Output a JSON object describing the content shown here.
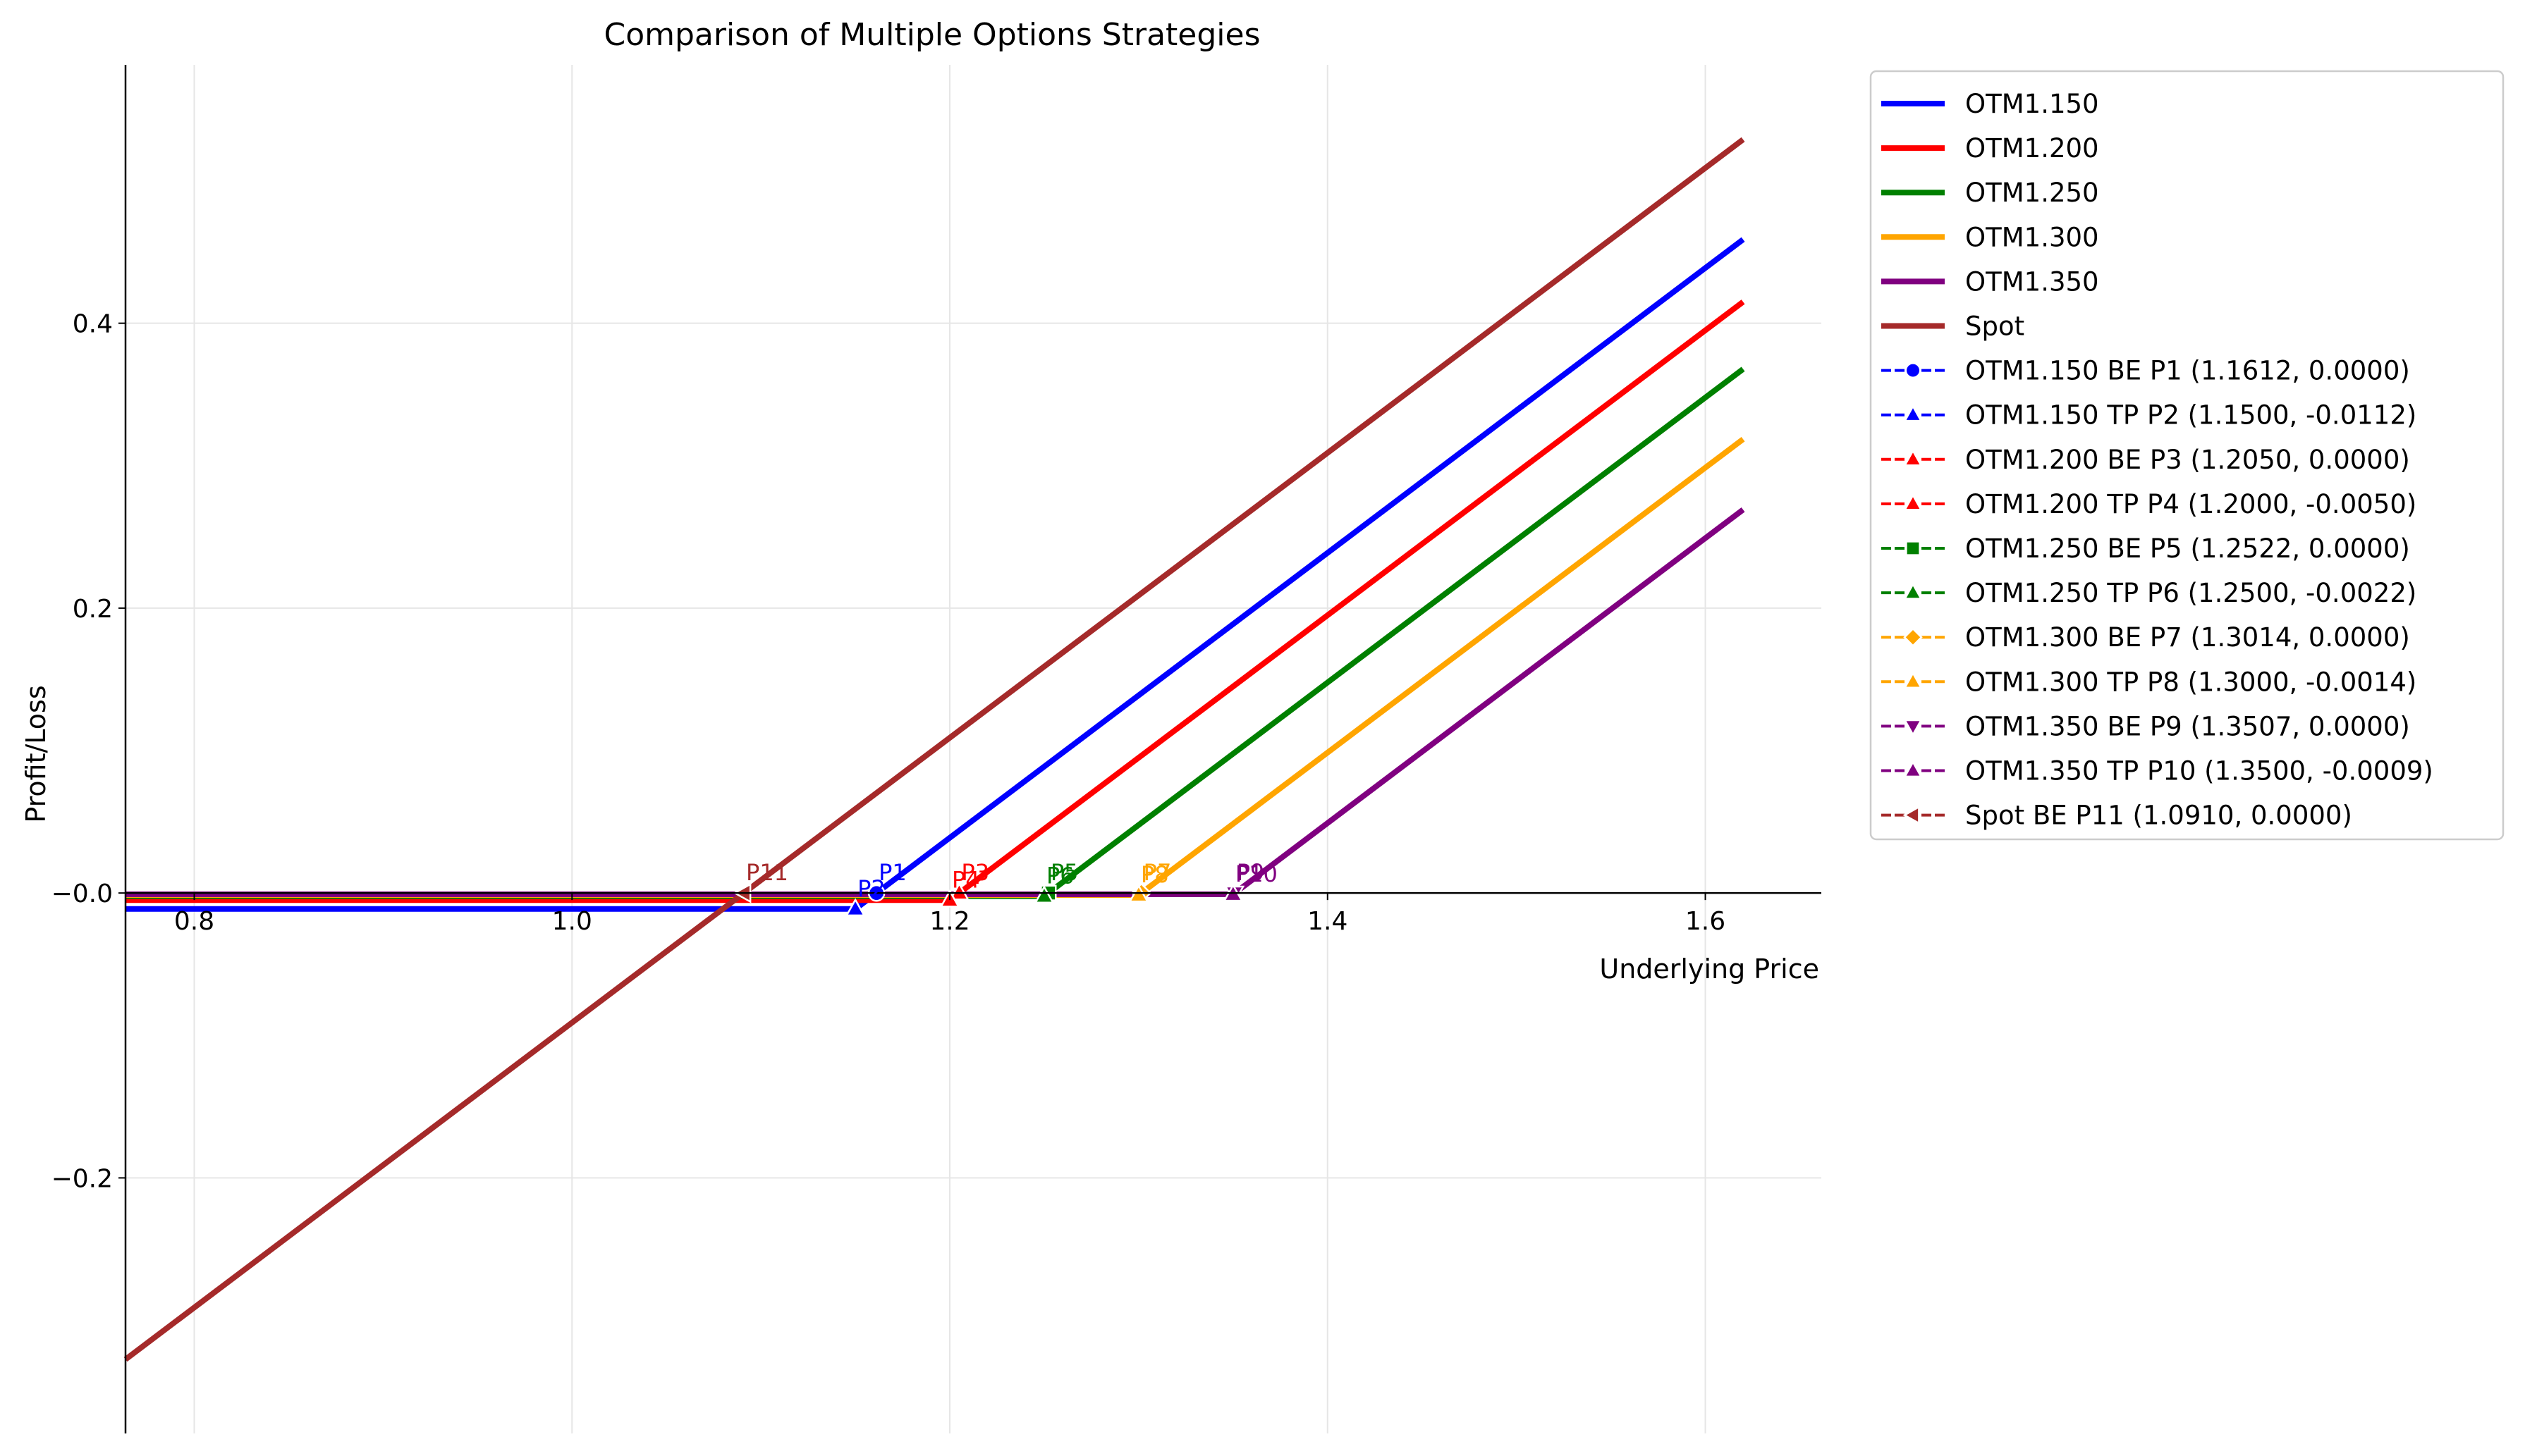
{
  "chart_data": {
    "type": "line",
    "title": "Comparison of Multiple Options Strategies",
    "xlabel": "Underlying Price",
    "ylabel": "Profit/Loss",
    "xlim": [
      0.7636,
      1.6614
    ],
    "ylim": [
      -0.3794,
      0.5814
    ],
    "xticks": [
      0.8,
      1.0,
      1.2,
      1.4,
      1.6
    ],
    "xtick_labels": [
      "0.8",
      "1.0",
      "1.2",
      "1.4",
      "1.6"
    ],
    "yticks": [
      -0.2,
      0.0,
      0.2,
      0.4
    ],
    "ytick_labels": [
      "−0.2",
      "−0.0",
      "0.2",
      "0.4"
    ],
    "grid": true,
    "legend_position": "outside-right",
    "series": [
      {
        "name": "OTM1.150",
        "color": "#0000ff",
        "x": [
          0.7636,
          1.15,
          1.62
        ],
        "y": [
          -0.0112,
          -0.0112,
          0.4588
        ]
      },
      {
        "name": "OTM1.200",
        "color": "#ff0000",
        "x": [
          0.7636,
          1.2,
          1.62
        ],
        "y": [
          -0.005,
          -0.005,
          0.415
        ]
      },
      {
        "name": "OTM1.250",
        "color": "#008000",
        "x": [
          0.7636,
          1.25,
          1.62
        ],
        "y": [
          -0.0022,
          -0.0022,
          0.3678
        ]
      },
      {
        "name": "OTM1.300",
        "color": "#ffa500",
        "x": [
          0.7636,
          1.3,
          1.62
        ],
        "y": [
          -0.0014,
          -0.0014,
          0.3186
        ]
      },
      {
        "name": "OTM1.350",
        "color": "#800080",
        "x": [
          0.7636,
          1.35,
          1.62
        ],
        "y": [
          -0.0009,
          -0.0009,
          0.2691
        ]
      },
      {
        "name": "Spot",
        "color": "#a52a2a",
        "x": [
          0.7636,
          1.62
        ],
        "y": [
          -0.3274,
          0.529
        ]
      }
    ],
    "points": [
      {
        "legend": "OTM1.150 BE P1 (1.1612, 0.0000)",
        "label": "P1",
        "x": 1.1612,
        "y": 0.0,
        "color": "#0000ff",
        "marker": "circle"
      },
      {
        "legend": "OTM1.150 TP P2 (1.1500, -0.0112)",
        "label": "P2",
        "x": 1.15,
        "y": -0.0112,
        "color": "#0000ff",
        "marker": "triangle-up"
      },
      {
        "legend": "OTM1.200 BE P3 (1.2050, 0.0000)",
        "label": "P3",
        "x": 1.205,
        "y": 0.0,
        "color": "#ff0000",
        "marker": "triangle-up"
      },
      {
        "legend": "OTM1.200 TP P4 (1.2000, -0.0050)",
        "label": "P4",
        "x": 1.2,
        "y": -0.005,
        "color": "#ff0000",
        "marker": "triangle-up"
      },
      {
        "legend": "OTM1.250 BE P5 (1.2522, 0.0000)",
        "label": "P5",
        "x": 1.2522,
        "y": 0.0,
        "color": "#008000",
        "marker": "square"
      },
      {
        "legend": "OTM1.250 TP P6 (1.2500, -0.0022)",
        "label": "P6",
        "x": 1.25,
        "y": -0.0022,
        "color": "#008000",
        "marker": "triangle-up"
      },
      {
        "legend": "OTM1.300 BE P7 (1.3014, 0.0000)",
        "label": "P7",
        "x": 1.3014,
        "y": 0.0,
        "color": "#ffa500",
        "marker": "diamond"
      },
      {
        "legend": "OTM1.300 TP P8 (1.3000, -0.0014)",
        "label": "P8",
        "x": 1.3,
        "y": -0.0014,
        "color": "#ffa500",
        "marker": "triangle-up"
      },
      {
        "legend": "OTM1.350 BE P9 (1.3507, 0.0000)",
        "label": "P9",
        "x": 1.3507,
        "y": 0.0,
        "color": "#800080",
        "marker": "triangle-down"
      },
      {
        "legend": "OTM1.350 TP P10 (1.3500, -0.0009)",
        "label": "P10",
        "x": 1.35,
        "y": -0.0009,
        "color": "#800080",
        "marker": "triangle-up"
      },
      {
        "legend": "Spot BE P11 (1.0910, 0.0000)",
        "label": "P11",
        "x": 1.091,
        "y": 0.0,
        "color": "#a52a2a",
        "marker": "triangle-left"
      }
    ]
  }
}
